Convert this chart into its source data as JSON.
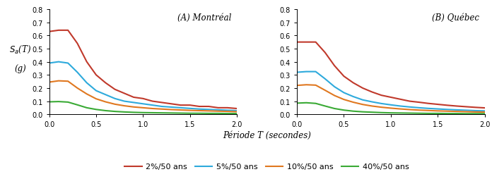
{
  "montreal": {
    "title": "(A) Montréal",
    "T": [
      0.0,
      0.1,
      0.2,
      0.3,
      0.4,
      0.5,
      0.6,
      0.7,
      0.8,
      0.9,
      1.0,
      1.1,
      1.2,
      1.3,
      1.4,
      1.5,
      1.6,
      1.7,
      1.8,
      1.9,
      2.0
    ],
    "p2": [
      0.63,
      0.64,
      0.64,
      0.54,
      0.4,
      0.3,
      0.24,
      0.19,
      0.16,
      0.13,
      0.12,
      0.1,
      0.09,
      0.08,
      0.07,
      0.07,
      0.06,
      0.06,
      0.05,
      0.05,
      0.044
    ],
    "p5": [
      0.39,
      0.4,
      0.39,
      0.32,
      0.24,
      0.18,
      0.15,
      0.12,
      0.1,
      0.09,
      0.08,
      0.07,
      0.06,
      0.055,
      0.05,
      0.045,
      0.04,
      0.037,
      0.034,
      0.031,
      0.028
    ],
    "p10": [
      0.245,
      0.255,
      0.252,
      0.2,
      0.155,
      0.118,
      0.095,
      0.077,
      0.065,
      0.056,
      0.05,
      0.044,
      0.04,
      0.036,
      0.033,
      0.03,
      0.028,
      0.026,
      0.024,
      0.022,
      0.02
    ],
    "p40": [
      0.095,
      0.097,
      0.093,
      0.072,
      0.05,
      0.037,
      0.028,
      0.022,
      0.018,
      0.015,
      0.013,
      0.012,
      0.011,
      0.01,
      0.009,
      0.008,
      0.008,
      0.007,
      0.007,
      0.006,
      0.006
    ]
  },
  "quebec": {
    "title": "(B) Québec",
    "T": [
      0.0,
      0.1,
      0.2,
      0.3,
      0.4,
      0.5,
      0.6,
      0.7,
      0.8,
      0.9,
      1.0,
      1.1,
      1.2,
      1.3,
      1.4,
      1.5,
      1.6,
      1.7,
      1.8,
      1.9,
      2.0
    ],
    "p2": [
      0.55,
      0.55,
      0.55,
      0.47,
      0.37,
      0.29,
      0.24,
      0.2,
      0.17,
      0.145,
      0.13,
      0.115,
      0.1,
      0.092,
      0.083,
      0.076,
      0.069,
      0.063,
      0.058,
      0.053,
      0.049
    ],
    "p5": [
      0.32,
      0.325,
      0.325,
      0.27,
      0.21,
      0.165,
      0.135,
      0.11,
      0.095,
      0.082,
      0.072,
      0.063,
      0.056,
      0.05,
      0.045,
      0.041,
      0.037,
      0.034,
      0.031,
      0.028,
      0.026
    ],
    "p10": [
      0.22,
      0.225,
      0.222,
      0.183,
      0.143,
      0.113,
      0.092,
      0.075,
      0.063,
      0.054,
      0.047,
      0.041,
      0.036,
      0.032,
      0.029,
      0.026,
      0.024,
      0.022,
      0.02,
      0.018,
      0.017
    ],
    "p40": [
      0.085,
      0.088,
      0.083,
      0.063,
      0.044,
      0.032,
      0.024,
      0.019,
      0.016,
      0.013,
      0.011,
      0.01,
      0.009,
      0.008,
      0.007,
      0.007,
      0.006,
      0.006,
      0.005,
      0.005,
      0.005
    ]
  },
  "colors": {
    "p2": "#c0392b",
    "p5": "#2eaadc",
    "p10": "#e07820",
    "p40": "#3aaa35"
  },
  "legend_labels": [
    "2%/50 ans",
    "5%/50 ans",
    "10%/50 ans",
    "40%/50 ans"
  ],
  "ylabel_line1": "$S_a$(T)",
  "ylabel_line2": "(g)",
  "xlabel": "Période T (secondes)",
  "ylim": [
    0.0,
    0.8
  ],
  "yticks": [
    0.0,
    0.1,
    0.2,
    0.3,
    0.4,
    0.5,
    0.6,
    0.7,
    0.8
  ],
  "xlim": [
    0.0,
    2.0
  ],
  "xticks": [
    0.0,
    0.5,
    1.0,
    1.5,
    2.0
  ],
  "linewidth": 1.5,
  "tick_fontsize": 7,
  "label_fontsize": 8.5,
  "title_fontsize": 8.5
}
